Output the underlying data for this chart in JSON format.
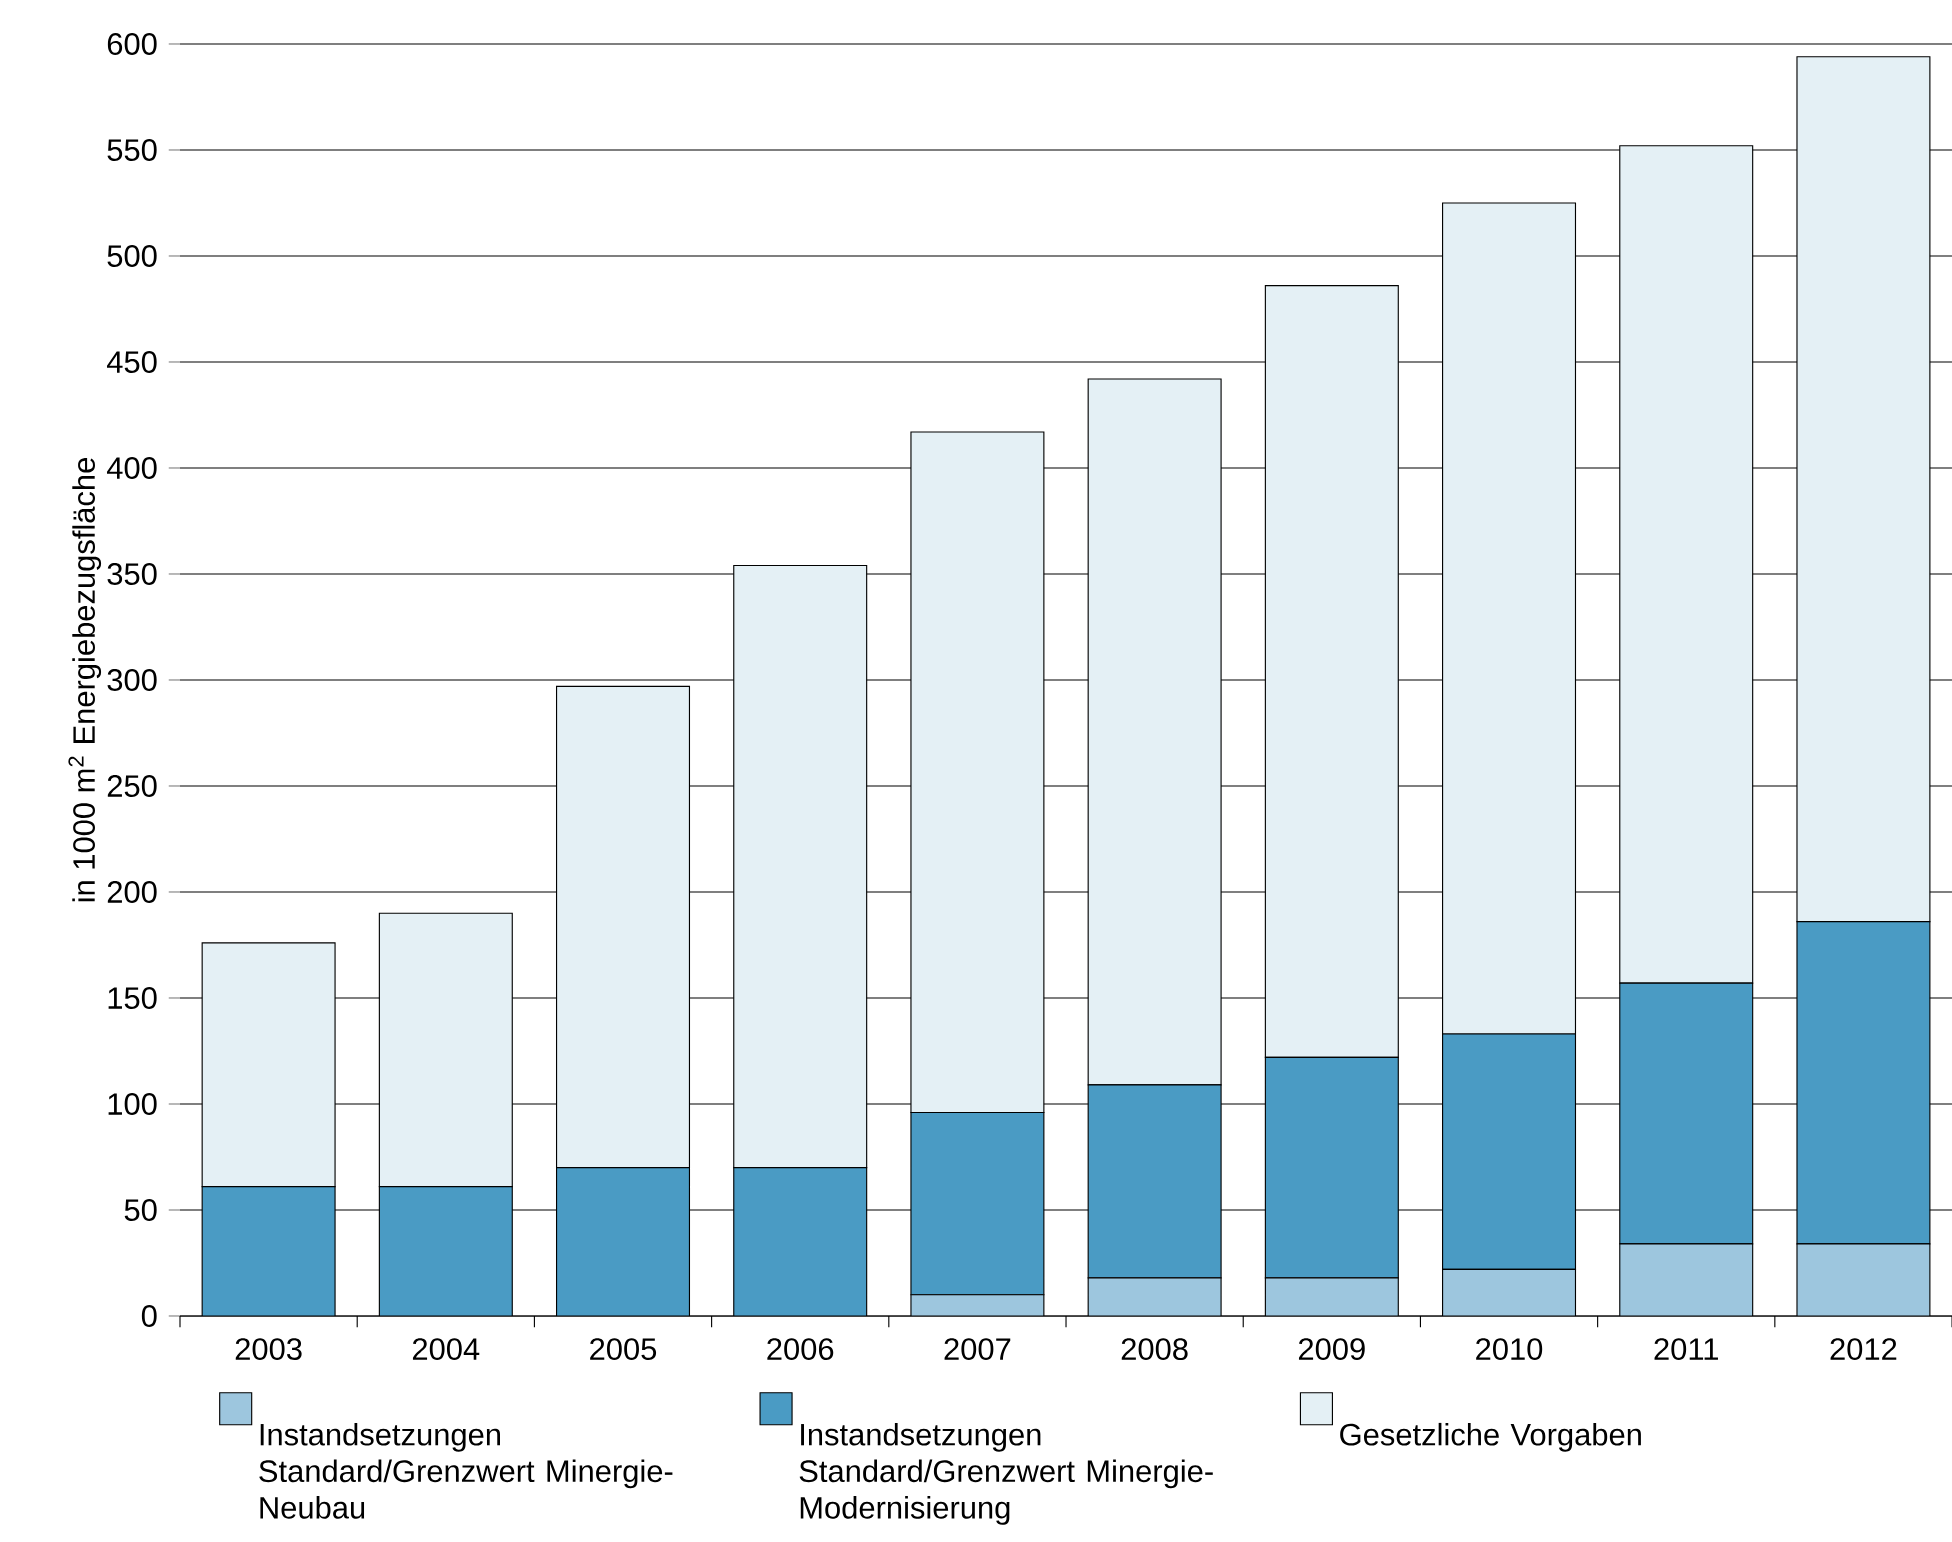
{
  "chart_data": {
    "type": "bar",
    "stacked": true,
    "ylabel": "in 1000 m$^{2}$ Energiebezugsfläche",
    "categories": [
      "2003",
      "2004",
      "2005",
      "2006",
      "2007",
      "2008",
      "2009",
      "2010",
      "2011",
      "2012"
    ],
    "series": [
      {
        "name": "Instandsetzungen Standard/Grenzwert Minergie-Neubau",
        "color": "#9dc6de",
        "values": [
          0,
          0,
          0,
          0,
          10,
          18,
          18,
          22,
          34,
          34
        ]
      },
      {
        "name": "Instandsetzungen Standard/Grenzwert Minergie-Modernisierung",
        "color": "#4a9bc4",
        "values": [
          61,
          61,
          70,
          70,
          86,
          91,
          104,
          111,
          123,
          152
        ]
      },
      {
        "name": "Gesetzliche Vorgaben",
        "color": "#e4f0f5",
        "values": [
          115,
          129,
          227,
          284,
          321,
          333,
          364,
          392,
          395,
          408
        ]
      }
    ],
    "ylim": [
      0,
      600
    ],
    "yticks": [
      0,
      50,
      100,
      150,
      200,
      250,
      300,
      350,
      400,
      450,
      500,
      550,
      600
    ],
    "grid": "y",
    "legend": "bottom"
  }
}
